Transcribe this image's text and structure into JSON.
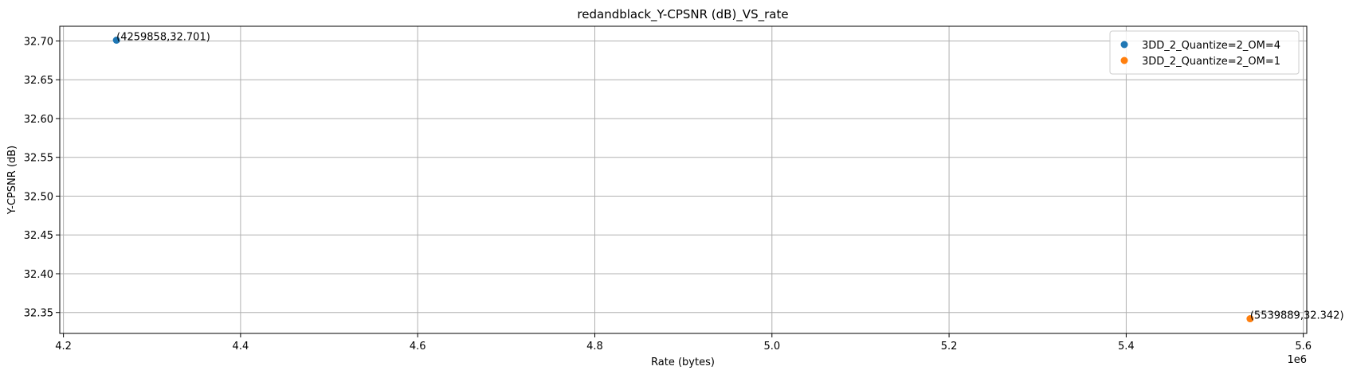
{
  "chart_data": {
    "type": "scatter",
    "title": "redandblack_Y-CPSNR (dB)_VS_rate",
    "xlabel": "Rate (bytes)",
    "ylabel": "Y-CPSNR (dB)",
    "x_offset_label": "1e6",
    "series": [
      {
        "name": "3DD_2_Quantize=2_OM=4",
        "color": "#1f77b4",
        "x": [
          4259858
        ],
        "values": [
          32.701
        ],
        "value_labels": [
          "(4259858,32.701)"
        ]
      },
      {
        "name": "3DD_2_Quantize=2_OM=1",
        "color": "#ff7f0e",
        "x": [
          5539889
        ],
        "values": [
          32.342
        ],
        "value_labels": [
          "(5539889,32.342)"
        ]
      }
    ],
    "xlim": [
      4195856,
      5603891
    ],
    "xticks": [
      {
        "value": 4200000,
        "label": "4.2"
      },
      {
        "value": 4400000,
        "label": "4.4"
      },
      {
        "value": 4600000,
        "label": "4.6"
      },
      {
        "value": 4800000,
        "label": "4.8"
      },
      {
        "value": 5000000,
        "label": "5.0"
      },
      {
        "value": 5200000,
        "label": "5.2"
      },
      {
        "value": 5400000,
        "label": "5.4"
      },
      {
        "value": 5600000,
        "label": "5.6"
      }
    ],
    "ylim": [
      32.32305,
      32.71895
    ],
    "yticks": [
      32.35,
      {
        "value": 32.4,
        "label": "32.40"
      },
      32.45,
      {
        "value": 32.5,
        "label": "32.50"
      },
      32.55,
      {
        "value": 32.6,
        "label": "32.60"
      },
      32.65,
      {
        "value": 32.7,
        "label": "32.70"
      }
    ],
    "grid": true,
    "legend": "upper right"
  }
}
